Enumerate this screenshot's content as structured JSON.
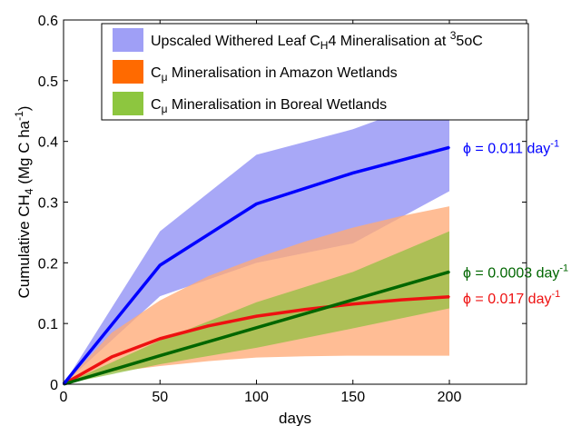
{
  "chart_data": {
    "type": "area",
    "xlabel": "days",
    "ylabel": "Cumulative CH4 (Mg C ha-1)",
    "xlim": [
      0,
      240
    ],
    "ylim": [
      0,
      0.6
    ],
    "x_ticks": [
      0,
      50,
      100,
      150,
      200
    ],
    "y_ticks": [
      0,
      0.1,
      0.2,
      0.3,
      0.4,
      0.5,
      0.6
    ],
    "x_tick_labels": [
      "0",
      "50",
      "100",
      "150",
      "200"
    ],
    "y_tick_labels": [
      "0",
      "0.1",
      "0.2",
      "0.3",
      "0.4",
      "0.5",
      "0.6"
    ],
    "grid": false,
    "legend_position": "top",
    "series": [
      {
        "name": "Upscaled Withered Leaf CH4 Mineralisation at 35oC",
        "color": "#0000ff",
        "band_color": "#9f9ff6",
        "x": [
          0,
          50,
          100,
          150,
          200
        ],
        "values": [
          0,
          0.196,
          0.297,
          0.348,
          0.39
        ],
        "upper": [
          0,
          0.252,
          0.378,
          0.42,
          0.478
        ],
        "lower": [
          0,
          0.145,
          0.2,
          0.232,
          0.318
        ]
      },
      {
        "name": "Cμ Mineralisation in Amazon Wetlands",
        "color": "#ee1111",
        "band_color": "#ffaa77",
        "x": [
          0,
          25,
          50,
          75,
          100,
          125,
          150,
          175,
          200
        ],
        "values": [
          0,
          0.045,
          0.075,
          0.096,
          0.112,
          0.123,
          0.132,
          0.139,
          0.144
        ],
        "upper": [
          0,
          0.085,
          0.138,
          0.178,
          0.208,
          0.235,
          0.258,
          0.277,
          0.293
        ],
        "lower": [
          0,
          0.02,
          0.03,
          0.038,
          0.044,
          0.046,
          0.047,
          0.047,
          0.047
        ]
      },
      {
        "name": "Cμ Mineralisation in Boreal Wetlands",
        "color": "#006600",
        "band_color": "#8dbf3f",
        "x": [
          0,
          50,
          100,
          150,
          200
        ],
        "values": [
          0,
          0.047,
          0.093,
          0.139,
          0.185
        ],
        "upper": [
          0,
          0.072,
          0.135,
          0.185,
          0.252
        ],
        "lower": [
          0,
          0.033,
          0.06,
          0.092,
          0.125
        ]
      }
    ],
    "annotations": [
      {
        "text": "ϕ = 0.011 day-1",
        "color": "#0000ff",
        "y": 0.39
      },
      {
        "text": "ϕ = 0.0003 day-1",
        "color": "#006600",
        "y": 0.185
      },
      {
        "text": "ϕ = 0.017 day-1",
        "color": "#ee1111",
        "y": 0.142
      }
    ]
  }
}
